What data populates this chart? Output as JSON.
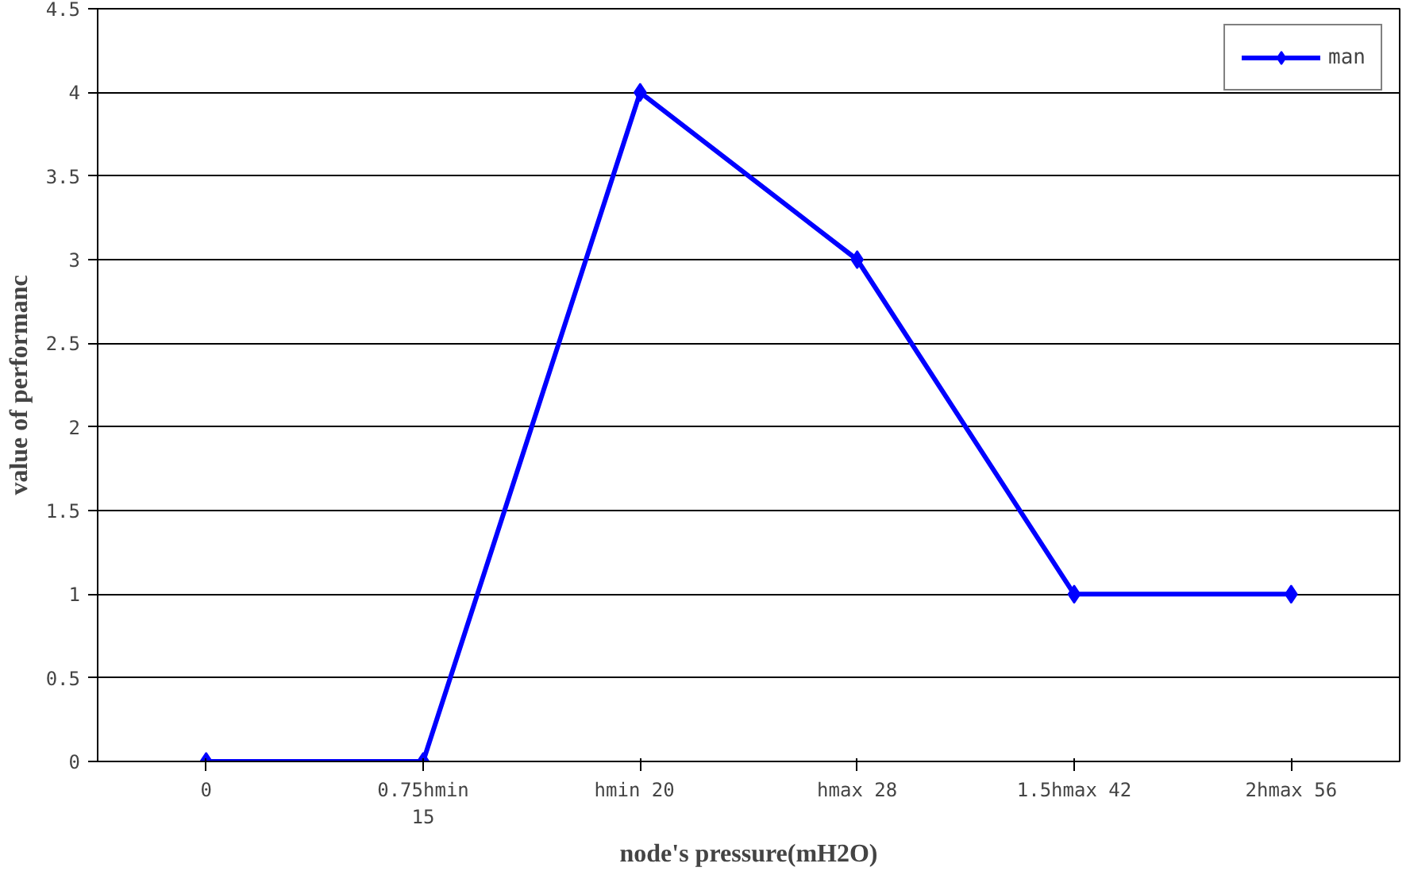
{
  "chart_data": {
    "type": "line",
    "xlabel": "node's pressure(mH2O)",
    "ylabel": "value of performanc",
    "categories": [
      "0",
      "0.75hmin\n15",
      "hmin  20",
      "hmax 28",
      "1.5hmax 42",
      "2hmax 56"
    ],
    "series": [
      {
        "name": "man",
        "color": "#0000ff",
        "values": [
          0,
          0,
          4,
          3,
          1,
          1
        ]
      }
    ],
    "ylim": [
      0,
      4.5
    ],
    "yticks": [
      0,
      0.5,
      1,
      1.5,
      2,
      2.5,
      3,
      3.5,
      4,
      4.5
    ],
    "grid": "y",
    "legend": "top right",
    "marker": "diamond",
    "line_style": "solid"
  }
}
